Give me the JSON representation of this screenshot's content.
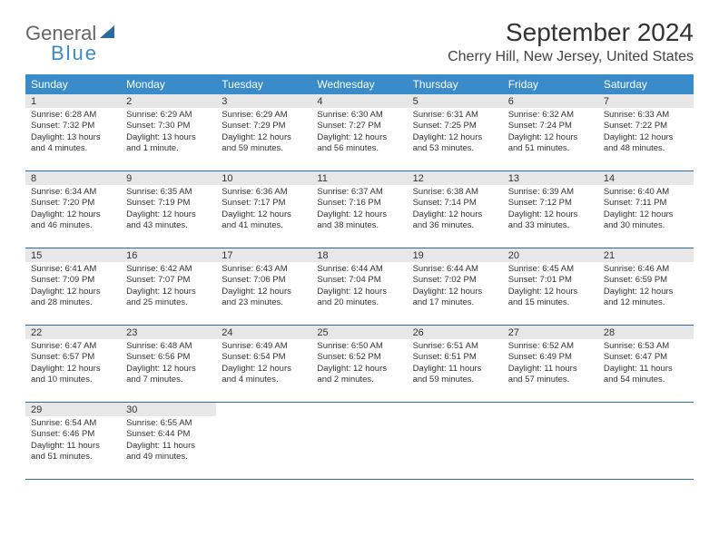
{
  "logo": {
    "line1": "General",
    "line2": "Blue"
  },
  "title": "September 2024",
  "location": "Cherry Hill, New Jersey, United States",
  "colors": {
    "header_bg": "#3a8bc9",
    "daynum_bg": "#e7e7e7",
    "week_border": "#2c6aa0"
  },
  "weekdays": [
    "Sunday",
    "Monday",
    "Tuesday",
    "Wednesday",
    "Thursday",
    "Friday",
    "Saturday"
  ],
  "weeks": [
    [
      {
        "d": "1",
        "sr": "Sunrise: 6:28 AM",
        "ss": "Sunset: 7:32 PM",
        "dl1": "Daylight: 13 hours",
        "dl2": "and 4 minutes."
      },
      {
        "d": "2",
        "sr": "Sunrise: 6:29 AM",
        "ss": "Sunset: 7:30 PM",
        "dl1": "Daylight: 13 hours",
        "dl2": "and 1 minute."
      },
      {
        "d": "3",
        "sr": "Sunrise: 6:29 AM",
        "ss": "Sunset: 7:29 PM",
        "dl1": "Daylight: 12 hours",
        "dl2": "and 59 minutes."
      },
      {
        "d": "4",
        "sr": "Sunrise: 6:30 AM",
        "ss": "Sunset: 7:27 PM",
        "dl1": "Daylight: 12 hours",
        "dl2": "and 56 minutes."
      },
      {
        "d": "5",
        "sr": "Sunrise: 6:31 AM",
        "ss": "Sunset: 7:25 PM",
        "dl1": "Daylight: 12 hours",
        "dl2": "and 53 minutes."
      },
      {
        "d": "6",
        "sr": "Sunrise: 6:32 AM",
        "ss": "Sunset: 7:24 PM",
        "dl1": "Daylight: 12 hours",
        "dl2": "and 51 minutes."
      },
      {
        "d": "7",
        "sr": "Sunrise: 6:33 AM",
        "ss": "Sunset: 7:22 PM",
        "dl1": "Daylight: 12 hours",
        "dl2": "and 48 minutes."
      }
    ],
    [
      {
        "d": "8",
        "sr": "Sunrise: 6:34 AM",
        "ss": "Sunset: 7:20 PM",
        "dl1": "Daylight: 12 hours",
        "dl2": "and 46 minutes."
      },
      {
        "d": "9",
        "sr": "Sunrise: 6:35 AM",
        "ss": "Sunset: 7:19 PM",
        "dl1": "Daylight: 12 hours",
        "dl2": "and 43 minutes."
      },
      {
        "d": "10",
        "sr": "Sunrise: 6:36 AM",
        "ss": "Sunset: 7:17 PM",
        "dl1": "Daylight: 12 hours",
        "dl2": "and 41 minutes."
      },
      {
        "d": "11",
        "sr": "Sunrise: 6:37 AM",
        "ss": "Sunset: 7:16 PM",
        "dl1": "Daylight: 12 hours",
        "dl2": "and 38 minutes."
      },
      {
        "d": "12",
        "sr": "Sunrise: 6:38 AM",
        "ss": "Sunset: 7:14 PM",
        "dl1": "Daylight: 12 hours",
        "dl2": "and 36 minutes."
      },
      {
        "d": "13",
        "sr": "Sunrise: 6:39 AM",
        "ss": "Sunset: 7:12 PM",
        "dl1": "Daylight: 12 hours",
        "dl2": "and 33 minutes."
      },
      {
        "d": "14",
        "sr": "Sunrise: 6:40 AM",
        "ss": "Sunset: 7:11 PM",
        "dl1": "Daylight: 12 hours",
        "dl2": "and 30 minutes."
      }
    ],
    [
      {
        "d": "15",
        "sr": "Sunrise: 6:41 AM",
        "ss": "Sunset: 7:09 PM",
        "dl1": "Daylight: 12 hours",
        "dl2": "and 28 minutes."
      },
      {
        "d": "16",
        "sr": "Sunrise: 6:42 AM",
        "ss": "Sunset: 7:07 PM",
        "dl1": "Daylight: 12 hours",
        "dl2": "and 25 minutes."
      },
      {
        "d": "17",
        "sr": "Sunrise: 6:43 AM",
        "ss": "Sunset: 7:06 PM",
        "dl1": "Daylight: 12 hours",
        "dl2": "and 23 minutes."
      },
      {
        "d": "18",
        "sr": "Sunrise: 6:44 AM",
        "ss": "Sunset: 7:04 PM",
        "dl1": "Daylight: 12 hours",
        "dl2": "and 20 minutes."
      },
      {
        "d": "19",
        "sr": "Sunrise: 6:44 AM",
        "ss": "Sunset: 7:02 PM",
        "dl1": "Daylight: 12 hours",
        "dl2": "and 17 minutes."
      },
      {
        "d": "20",
        "sr": "Sunrise: 6:45 AM",
        "ss": "Sunset: 7:01 PM",
        "dl1": "Daylight: 12 hours",
        "dl2": "and 15 minutes."
      },
      {
        "d": "21",
        "sr": "Sunrise: 6:46 AM",
        "ss": "Sunset: 6:59 PM",
        "dl1": "Daylight: 12 hours",
        "dl2": "and 12 minutes."
      }
    ],
    [
      {
        "d": "22",
        "sr": "Sunrise: 6:47 AM",
        "ss": "Sunset: 6:57 PM",
        "dl1": "Daylight: 12 hours",
        "dl2": "and 10 minutes."
      },
      {
        "d": "23",
        "sr": "Sunrise: 6:48 AM",
        "ss": "Sunset: 6:56 PM",
        "dl1": "Daylight: 12 hours",
        "dl2": "and 7 minutes."
      },
      {
        "d": "24",
        "sr": "Sunrise: 6:49 AM",
        "ss": "Sunset: 6:54 PM",
        "dl1": "Daylight: 12 hours",
        "dl2": "and 4 minutes."
      },
      {
        "d": "25",
        "sr": "Sunrise: 6:50 AM",
        "ss": "Sunset: 6:52 PM",
        "dl1": "Daylight: 12 hours",
        "dl2": "and 2 minutes."
      },
      {
        "d": "26",
        "sr": "Sunrise: 6:51 AM",
        "ss": "Sunset: 6:51 PM",
        "dl1": "Daylight: 11 hours",
        "dl2": "and 59 minutes."
      },
      {
        "d": "27",
        "sr": "Sunrise: 6:52 AM",
        "ss": "Sunset: 6:49 PM",
        "dl1": "Daylight: 11 hours",
        "dl2": "and 57 minutes."
      },
      {
        "d": "28",
        "sr": "Sunrise: 6:53 AM",
        "ss": "Sunset: 6:47 PM",
        "dl1": "Daylight: 11 hours",
        "dl2": "and 54 minutes."
      }
    ],
    [
      {
        "d": "29",
        "sr": "Sunrise: 6:54 AM",
        "ss": "Sunset: 6:46 PM",
        "dl1": "Daylight: 11 hours",
        "dl2": "and 51 minutes."
      },
      {
        "d": "30",
        "sr": "Sunrise: 6:55 AM",
        "ss": "Sunset: 6:44 PM",
        "dl1": "Daylight: 11 hours",
        "dl2": "and 49 minutes."
      },
      null,
      null,
      null,
      null,
      null
    ]
  ]
}
